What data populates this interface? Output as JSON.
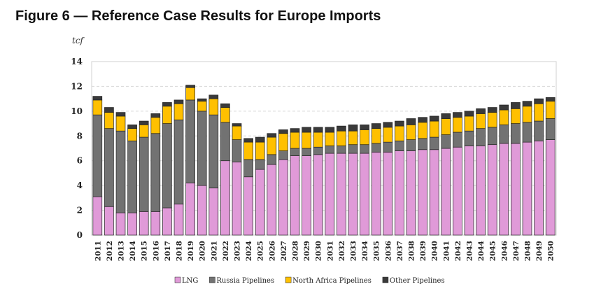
{
  "chart_data": {
    "type": "bar",
    "stacked": true,
    "title": "Figure 6 — Reference Case Results for Europe Imports",
    "ylabel": "tcf",
    "xlabel": "",
    "ylim": [
      0,
      14
    ],
    "yticks": [
      0,
      2,
      4,
      6,
      8,
      10,
      12,
      14
    ],
    "grid": true,
    "legend_position": "bottom",
    "categories": [
      "2011",
      "2012",
      "2013",
      "2014",
      "2015",
      "2016",
      "2017",
      "2018",
      "2019",
      "2020",
      "2021",
      "2022",
      "2023",
      "2024",
      "2025",
      "2026",
      "2027",
      "2028",
      "2029",
      "2030",
      "2031",
      "2032",
      "2033",
      "2034",
      "2035",
      "2036",
      "2037",
      "2038",
      "2039",
      "2040",
      "2041",
      "2042",
      "2043",
      "2044",
      "2045",
      "2046",
      "2047",
      "2048",
      "2049",
      "2050"
    ],
    "series": [
      {
        "name": "LNG",
        "color": "#e09ad8",
        "values": [
          3.1,
          2.3,
          1.8,
          1.8,
          1.9,
          1.9,
          2.2,
          2.5,
          4.2,
          4.0,
          3.8,
          6.0,
          5.9,
          4.7,
          5.3,
          5.7,
          6.1,
          6.4,
          6.4,
          6.5,
          6.6,
          6.6,
          6.6,
          6.6,
          6.7,
          6.7,
          6.8,
          6.8,
          6.9,
          6.9,
          7.0,
          7.1,
          7.2,
          7.2,
          7.3,
          7.4,
          7.4,
          7.5,
          7.6,
          7.7
        ]
      },
      {
        "name": "Russia Pipelines",
        "color": "#727272",
        "values": [
          6.6,
          6.3,
          6.6,
          5.8,
          6.0,
          6.3,
          6.8,
          6.8,
          6.7,
          6.0,
          5.9,
          3.1,
          1.8,
          1.4,
          0.8,
          0.8,
          0.7,
          0.6,
          0.6,
          0.6,
          0.6,
          0.6,
          0.7,
          0.7,
          0.7,
          0.8,
          0.8,
          0.9,
          0.9,
          1.0,
          1.1,
          1.2,
          1.2,
          1.4,
          1.4,
          1.5,
          1.6,
          1.6,
          1.6,
          1.7
        ]
      },
      {
        "name": "North Africa Pipelines",
        "color": "#ffc000",
        "values": [
          1.2,
          1.3,
          1.2,
          1.0,
          1.0,
          1.3,
          1.4,
          1.3,
          1.0,
          0.8,
          1.3,
          1.2,
          1.1,
          1.4,
          1.4,
          1.4,
          1.4,
          1.3,
          1.3,
          1.2,
          1.1,
          1.2,
          1.1,
          1.2,
          1.2,
          1.2,
          1.2,
          1.2,
          1.3,
          1.3,
          1.3,
          1.2,
          1.2,
          1.2,
          1.2,
          1.2,
          1.2,
          1.3,
          1.4,
          1.4
        ]
      },
      {
        "name": "Other Pipelines",
        "color": "#3a3a3a",
        "values": [
          0.3,
          0.4,
          0.3,
          0.3,
          0.3,
          0.3,
          0.3,
          0.3,
          0.2,
          0.2,
          0.3,
          0.3,
          0.2,
          0.3,
          0.4,
          0.3,
          0.3,
          0.3,
          0.4,
          0.4,
          0.4,
          0.4,
          0.5,
          0.4,
          0.4,
          0.4,
          0.4,
          0.5,
          0.4,
          0.4,
          0.4,
          0.4,
          0.4,
          0.4,
          0.4,
          0.4,
          0.5,
          0.4,
          0.4,
          0.3
        ]
      }
    ]
  }
}
